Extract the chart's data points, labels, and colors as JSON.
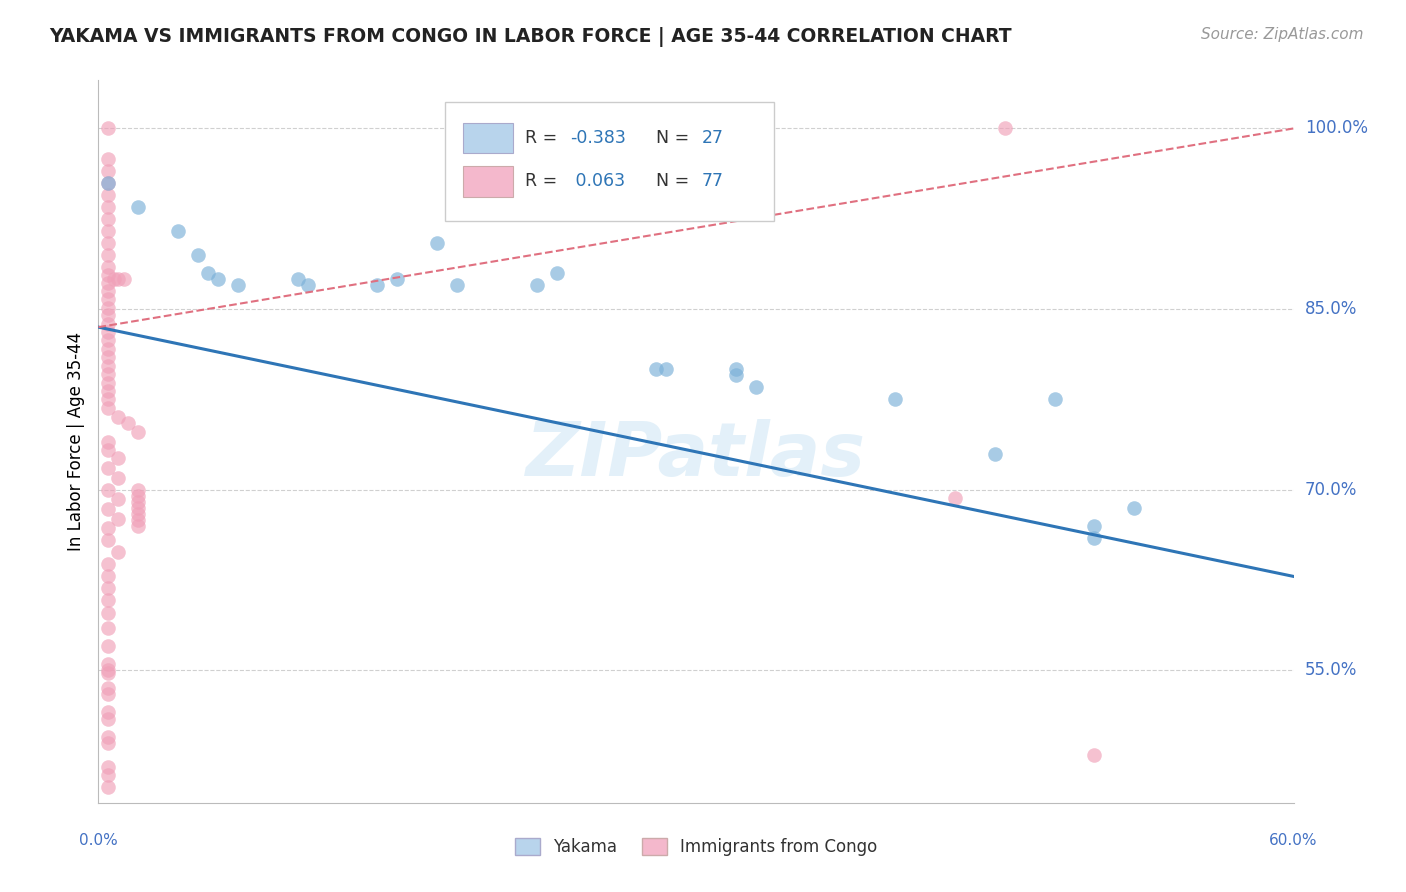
{
  "title": "YAKAMA VS IMMIGRANTS FROM CONGO IN LABOR FORCE | AGE 35-44 CORRELATION CHART",
  "source": "Source: ZipAtlas.com",
  "ylabel": "In Labor Force | Age 35-44",
  "ytick_labels": [
    "100.0%",
    "85.0%",
    "70.0%",
    "55.0%"
  ],
  "ytick_values": [
    1.0,
    0.85,
    0.7,
    0.55
  ],
  "xlim": [
    0.0,
    0.6
  ],
  "ylim": [
    0.44,
    1.04
  ],
  "legend_label1": "Yakama",
  "legend_label2": "Immigrants from Congo",
  "watermark": "ZIPatlas",
  "blue_scatter_color": "#7ab0d8",
  "pink_scatter_color": "#f0a0b8",
  "blue_line_color": "#2e75b6",
  "pink_line_color": "#e07080",
  "grid_color": "#d0d0d0",
  "blue_legend_fill": "#b8d4ec",
  "pink_legend_fill": "#f4b8cc",
  "blue_points": [
    [
      0.005,
      0.955
    ],
    [
      0.02,
      0.935
    ],
    [
      0.04,
      0.915
    ],
    [
      0.05,
      0.895
    ],
    [
      0.055,
      0.88
    ],
    [
      0.06,
      0.875
    ],
    [
      0.07,
      0.87
    ],
    [
      0.1,
      0.875
    ],
    [
      0.105,
      0.87
    ],
    [
      0.14,
      0.87
    ],
    [
      0.15,
      0.875
    ],
    [
      0.17,
      0.905
    ],
    [
      0.18,
      0.87
    ],
    [
      0.21,
      0.96
    ],
    [
      0.22,
      0.87
    ],
    [
      0.23,
      0.88
    ],
    [
      0.28,
      0.8
    ],
    [
      0.285,
      0.8
    ],
    [
      0.32,
      0.795
    ],
    [
      0.32,
      0.8
    ],
    [
      0.33,
      0.785
    ],
    [
      0.4,
      0.775
    ],
    [
      0.45,
      0.73
    ],
    [
      0.48,
      0.775
    ],
    [
      0.5,
      0.66
    ],
    [
      0.5,
      0.67
    ],
    [
      0.52,
      0.685
    ]
  ],
  "pink_points": [
    [
      0.005,
      1.0
    ],
    [
      0.185,
      1.0
    ],
    [
      0.315,
      1.0
    ],
    [
      0.455,
      1.0
    ],
    [
      0.005,
      0.975
    ],
    [
      0.005,
      0.965
    ],
    [
      0.005,
      0.955
    ],
    [
      0.005,
      0.945
    ],
    [
      0.005,
      0.935
    ],
    [
      0.005,
      0.925
    ],
    [
      0.005,
      0.915
    ],
    [
      0.005,
      0.905
    ],
    [
      0.005,
      0.895
    ],
    [
      0.005,
      0.885
    ],
    [
      0.005,
      0.878
    ],
    [
      0.005,
      0.872
    ],
    [
      0.005,
      0.865
    ],
    [
      0.005,
      0.858
    ],
    [
      0.005,
      0.851
    ],
    [
      0.005,
      0.845
    ],
    [
      0.005,
      0.838
    ],
    [
      0.005,
      0.831
    ],
    [
      0.005,
      0.824
    ],
    [
      0.008,
      0.875
    ],
    [
      0.01,
      0.875
    ],
    [
      0.013,
      0.875
    ],
    [
      0.005,
      0.817
    ],
    [
      0.005,
      0.81
    ],
    [
      0.005,
      0.803
    ],
    [
      0.005,
      0.796
    ],
    [
      0.005,
      0.789
    ],
    [
      0.005,
      0.782
    ],
    [
      0.005,
      0.775
    ],
    [
      0.005,
      0.768
    ],
    [
      0.01,
      0.76
    ],
    [
      0.015,
      0.755
    ],
    [
      0.02,
      0.748
    ],
    [
      0.005,
      0.74
    ],
    [
      0.005,
      0.733
    ],
    [
      0.01,
      0.726
    ],
    [
      0.005,
      0.718
    ],
    [
      0.01,
      0.71
    ],
    [
      0.005,
      0.7
    ],
    [
      0.01,
      0.692
    ],
    [
      0.005,
      0.684
    ],
    [
      0.01,
      0.676
    ],
    [
      0.005,
      0.668
    ],
    [
      0.005,
      0.658
    ],
    [
      0.01,
      0.648
    ],
    [
      0.005,
      0.638
    ],
    [
      0.005,
      0.628
    ],
    [
      0.005,
      0.618
    ],
    [
      0.005,
      0.608
    ],
    [
      0.005,
      0.598
    ],
    [
      0.005,
      0.585
    ],
    [
      0.005,
      0.57
    ],
    [
      0.005,
      0.55
    ],
    [
      0.005,
      0.53
    ],
    [
      0.005,
      0.51
    ],
    [
      0.005,
      0.49
    ],
    [
      0.005,
      0.47
    ],
    [
      0.005,
      0.548
    ],
    [
      0.005,
      0.463
    ],
    [
      0.005,
      0.453
    ],
    [
      0.43,
      0.693
    ],
    [
      0.005,
      0.555
    ],
    [
      0.005,
      0.535
    ],
    [
      0.005,
      0.515
    ],
    [
      0.005,
      0.495
    ],
    [
      0.02,
      0.7
    ],
    [
      0.02,
      0.695
    ],
    [
      0.02,
      0.69
    ],
    [
      0.02,
      0.685
    ],
    [
      0.02,
      0.68
    ],
    [
      0.02,
      0.675
    ],
    [
      0.02,
      0.67
    ],
    [
      0.5,
      0.48
    ]
  ],
  "blue_trend": [
    0.0,
    0.6,
    0.835,
    0.628
  ],
  "pink_trend": [
    0.0,
    0.6,
    0.835,
    1.0
  ]
}
